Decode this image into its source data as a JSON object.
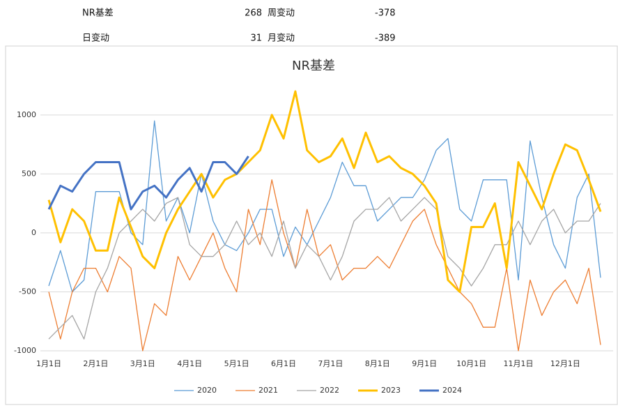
{
  "header": {
    "rows": [
      [
        "NR基差",
        268,
        "周变动",
        -378
      ],
      [
        "日变动",
        31,
        "月变动",
        -389
      ]
    ]
  },
  "chart_data": {
    "type": "line",
    "title": "NR基差",
    "categories": [
      "1月1日",
      null,
      null,
      null,
      "2月1日",
      null,
      null,
      null,
      "3月1日",
      null,
      null,
      null,
      "4月1日",
      null,
      null,
      null,
      "5月1日",
      null,
      null,
      null,
      "6月1日",
      null,
      null,
      null,
      "7月1日",
      null,
      null,
      null,
      "8月1日",
      null,
      null,
      null,
      "9月1日",
      null,
      null,
      null,
      "10月1日",
      null,
      null,
      null,
      "11月1日",
      null,
      null,
      null,
      "12月1日",
      null,
      null,
      null
    ],
    "series": [
      {
        "name": "2020",
        "color": "#5b9bd5",
        "width": 1.3,
        "values": [
          -450,
          -150,
          -500,
          -400,
          350,
          350,
          350,
          0,
          -100,
          950,
          100,
          300,
          0,
          500,
          100,
          -100,
          -150,
          0,
          200,
          200,
          -200,
          50,
          -100,
          100,
          300,
          600,
          400,
          400,
          100,
          200,
          300,
          300,
          450,
          700,
          800,
          200,
          100,
          450,
          450,
          450,
          -400,
          780,
          300,
          -100,
          -300,
          300,
          500,
          -380
        ]
      },
      {
        "name": "2021",
        "color": "#ed7d31",
        "width": 1.3,
        "values": [
          -500,
          -900,
          -500,
          -300,
          -300,
          -500,
          -200,
          -300,
          -1000,
          -600,
          -700,
          -200,
          -400,
          -200,
          0,
          -300,
          -500,
          200,
          -100,
          450,
          0,
          -300,
          200,
          -200,
          -100,
          -400,
          -300,
          -300,
          -200,
          -300,
          -100,
          100,
          200,
          -100,
          -300,
          -500,
          -600,
          -800,
          -800,
          -300,
          -1000,
          -400,
          -700,
          -500,
          -400,
          -600,
          -300,
          -950
        ]
      },
      {
        "name": "2022",
        "color": "#a5a5a5",
        "width": 1.3,
        "values": [
          -900,
          -800,
          -700,
          -900,
          -500,
          -300,
          0,
          100,
          200,
          100,
          250,
          300,
          -100,
          -200,
          -200,
          -100,
          100,
          -100,
          0,
          -200,
          100,
          -300,
          -100,
          -200,
          -400,
          -200,
          100,
          200,
          200,
          300,
          100,
          200,
          300,
          200,
          -200,
          -300,
          -450,
          -300,
          -100,
          -100,
          100,
          -100,
          100,
          200,
          0,
          100,
          100,
          250
        ]
      },
      {
        "name": "2023",
        "color": "#ffc000",
        "width": 3,
        "values": [
          280,
          -80,
          200,
          100,
          -150,
          -150,
          300,
          50,
          -200,
          -300,
          0,
          200,
          350,
          500,
          300,
          450,
          500,
          600,
          700,
          1000,
          800,
          1200,
          700,
          600,
          650,
          800,
          550,
          850,
          600,
          650,
          550,
          500,
          400,
          250,
          -400,
          -500,
          50,
          50,
          250,
          -300,
          600,
          400,
          200,
          500,
          750,
          700,
          450,
          180
        ]
      },
      {
        "name": "2024",
        "color": "#4472c4",
        "width": 3,
        "values": [
          200,
          400,
          350,
          500,
          600,
          600,
          600,
          200,
          350,
          400,
          300,
          450,
          550,
          350,
          600,
          600,
          500,
          650,
          null,
          null,
          null,
          null,
          null,
          null,
          null,
          null,
          null,
          null,
          null,
          null,
          null,
          null,
          null,
          null,
          null,
          null,
          null,
          null,
          null,
          null,
          null,
          null,
          null,
          null,
          null,
          null,
          null,
          null
        ]
      }
    ],
    "ylim": [
      -1000,
      1200
    ],
    "yticks": [
      -1000,
      -500,
      0,
      500,
      1000
    ],
    "grid": true,
    "legend": "bottom"
  }
}
